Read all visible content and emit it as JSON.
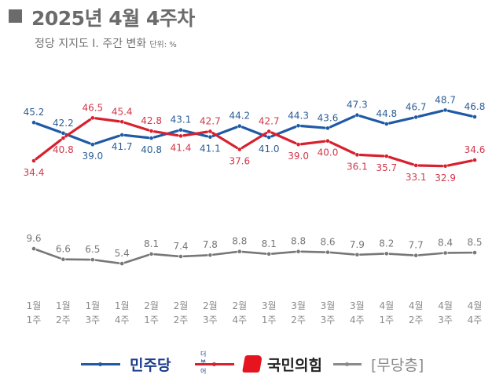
{
  "header": {
    "title": "2025년 4월 4주차",
    "subtitle": "정당 지지도 Ⅰ. 주간 변화",
    "unit": "단위: %"
  },
  "chart_data": {
    "type": "line",
    "title": "2025년 4월 4주차",
    "subtitle": "정당 지지도 Ⅰ. 주간 변화",
    "unit": "%",
    "x_months": [
      "1월",
      "1월",
      "1월",
      "1월",
      "2월",
      "2월",
      "2월",
      "2월",
      "3월",
      "3월",
      "3월",
      "3월",
      "4월",
      "4월",
      "4월",
      "4월"
    ],
    "x_weeks": [
      "1주",
      "2주",
      "3주",
      "4주",
      "1주",
      "2주",
      "3주",
      "4주",
      "1주",
      "2주",
      "3주",
      "4주",
      "1주",
      "2주",
      "3주",
      "4주"
    ],
    "series": [
      {
        "name": "민주당",
        "color": "#1f5aa6",
        "values": [
          45.2,
          42.2,
          39.0,
          41.7,
          40.8,
          43.1,
          41.1,
          44.2,
          41.0,
          44.3,
          43.6,
          47.3,
          44.8,
          46.7,
          48.7,
          46.8
        ],
        "labels": [
          "45.2",
          "42.2",
          "39.0",
          "41.7",
          "40.8",
          "43.1",
          "41.1",
          "44.2",
          "41.0",
          "44.3",
          "43.6",
          "47.3",
          "44.8",
          "46.7",
          "48.7",
          "46.8"
        ]
      },
      {
        "name": "국민의힘",
        "color": "#d8202e",
        "values": [
          34.4,
          40.8,
          46.5,
          45.4,
          42.8,
          41.4,
          42.7,
          37.6,
          42.7,
          39.0,
          40.0,
          36.1,
          35.7,
          33.1,
          32.9,
          34.6
        ],
        "labels": [
          "34.4",
          "40.8",
          "46.5",
          "45.4",
          "42.8",
          "41.4",
          "42.7",
          "37.6",
          "42.7",
          "39.0",
          "40.0",
          "36.1",
          "35.7",
          "33.1",
          "32.9",
          "34.6"
        ]
      },
      {
        "name": "[무당층]",
        "color": "#777777",
        "values": [
          9.6,
          6.6,
          6.5,
          5.4,
          8.1,
          7.4,
          7.8,
          8.8,
          8.1,
          8.8,
          8.6,
          7.9,
          8.2,
          7.7,
          8.4,
          8.5
        ],
        "labels": [
          "9.6",
          "6.6",
          "6.5",
          "5.4",
          "8.1",
          "7.4",
          "7.8",
          "8.8",
          "8.1",
          "8.8",
          "8.6",
          "7.9",
          "8.2",
          "7.7",
          "8.4",
          "8.5"
        ]
      }
    ],
    "label_positions": {
      "민주당": [
        "above",
        "above",
        "below",
        "below",
        "below",
        "above",
        "below",
        "above",
        "below",
        "above",
        "above",
        "above",
        "above",
        "above",
        "above",
        "above"
      ],
      "국민의힘": [
        "below",
        "below",
        "above",
        "above",
        "above",
        "below",
        "above",
        "below",
        "above",
        "below",
        "below",
        "below",
        "below",
        "below",
        "below",
        "above"
      ],
      "[무당층]": [
        "above",
        "above",
        "above",
        "above",
        "above",
        "above",
        "above",
        "above",
        "above",
        "above",
        "above",
        "above",
        "above",
        "above",
        "above",
        "above"
      ]
    },
    "grid": false,
    "legend_position": "bottom"
  },
  "legend": {
    "items": [
      {
        "label": "민주당",
        "logo_text": "더불어",
        "color": "#1f5aa6",
        "text_color": "#1a3c8c"
      },
      {
        "label": "국민의힘",
        "color": "#d8202e",
        "text_color": "#222222"
      },
      {
        "label": "[무당층]",
        "color": "#8a8a8a",
        "text_color": "#8a8a8a"
      }
    ]
  }
}
